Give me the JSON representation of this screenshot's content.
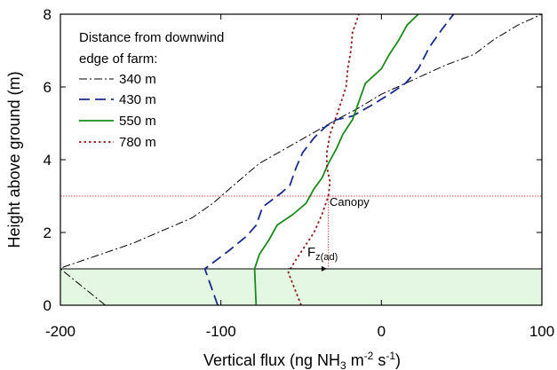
{
  "chart_data": {
    "type": "line",
    "xlabel": "Vertical flux (ng NH",
    "xlabel_sub": "3",
    "xlabel_mid": " m",
    "xlabel_sup1": "-2",
    "xlabel_mid2": " s",
    "xlabel_sup2": "-1",
    "xlabel_end": ")",
    "ylabel": "Height above ground (m)",
    "xlim": [
      -200,
      100
    ],
    "ylim": [
      0,
      8
    ],
    "xticks": [
      -200,
      -100,
      0,
      100
    ],
    "yticks": [
      0,
      2,
      4,
      6,
      8
    ],
    "legend_title_line1": "Distance from downwind",
    "legend_title_line2": "edge of farm:",
    "legend_position": "top-left",
    "grid": false,
    "canopy_height": 3,
    "canopy_label": "Canopy",
    "shaded_layer_top": 1,
    "flux_annotation": {
      "label": "F",
      "sub": "z(ad)",
      "x_from": -58,
      "x_to": -34,
      "y": 1.1
    },
    "series": [
      {
        "name": "340 m",
        "color": "#000000",
        "style": "dashdot",
        "points": [
          [
            -172,
            0
          ],
          [
            -200,
            1
          ],
          [
            -198,
            1.05
          ],
          [
            -155,
            1.7
          ],
          [
            -118,
            2.4
          ],
          [
            -105,
            2.8
          ],
          [
            -92,
            3.3
          ],
          [
            -76,
            3.9
          ],
          [
            -56,
            4.4
          ],
          [
            -40,
            4.8
          ],
          [
            -28,
            5.1
          ],
          [
            -15,
            5.4
          ],
          [
            0,
            5.8
          ],
          [
            20,
            6.2
          ],
          [
            40,
            6.6
          ],
          [
            58,
            6.9
          ],
          [
            70,
            7.3
          ],
          [
            85,
            7.7
          ],
          [
            100,
            8.0
          ]
        ]
      },
      {
        "name": "430 m",
        "color": "#1a2a8c",
        "style": "dash",
        "points": [
          [
            -102,
            0
          ],
          [
            -110,
            1
          ],
          [
            -107,
            1.1
          ],
          [
            -95,
            1.5
          ],
          [
            -84,
            1.9
          ],
          [
            -78,
            2.2
          ],
          [
            -74,
            2.7
          ],
          [
            -68,
            2.9
          ],
          [
            -62,
            3.1
          ],
          [
            -57,
            3.3
          ],
          [
            -53,
            3.8
          ],
          [
            -49,
            4.2
          ],
          [
            -42,
            4.6
          ],
          [
            -35,
            4.9
          ],
          [
            -28,
            5.1
          ],
          [
            -18,
            5.2
          ],
          [
            -6,
            5.5
          ],
          [
            5,
            5.8
          ],
          [
            15,
            6.1
          ],
          [
            23,
            6.5
          ],
          [
            30,
            7.1
          ],
          [
            38,
            7.6
          ],
          [
            45,
            8.0
          ]
        ]
      },
      {
        "name": "550 m",
        "color": "#1a8a1a",
        "style": "solid",
        "points": [
          [
            -78,
            -0.05
          ],
          [
            -79,
            1
          ],
          [
            -76,
            1.4
          ],
          [
            -70,
            1.8
          ],
          [
            -65,
            2.2
          ],
          [
            -55,
            2.5
          ],
          [
            -47,
            2.8
          ],
          [
            -42,
            3.2
          ],
          [
            -37,
            3.5
          ],
          [
            -33,
            3.9
          ],
          [
            -28,
            4.3
          ],
          [
            -24,
            4.7
          ],
          [
            -18,
            5.1
          ],
          [
            -14,
            5.6
          ],
          [
            -10,
            6.1
          ],
          [
            0,
            6.5
          ],
          [
            5,
            6.9
          ],
          [
            11,
            7.3
          ],
          [
            16,
            7.7
          ],
          [
            23,
            8.0
          ]
        ]
      },
      {
        "name": "780 m",
        "color": "#8b1a1a",
        "style": "dot",
        "points": [
          [
            -50,
            0
          ],
          [
            -58,
            0.9
          ],
          [
            -54,
            1.2
          ],
          [
            -48,
            1.6
          ],
          [
            -42,
            2.0
          ],
          [
            -37,
            2.5
          ],
          [
            -33,
            3.0
          ],
          [
            -32,
            3.4
          ],
          [
            -34,
            3.8
          ],
          [
            -34,
            4.2
          ],
          [
            -32,
            4.7
          ],
          [
            -28,
            5.2
          ],
          [
            -25,
            5.6
          ],
          [
            -22,
            6.0
          ],
          [
            -21,
            6.5
          ],
          [
            -19,
            7.0
          ],
          [
            -18,
            7.5
          ],
          [
            -14,
            8.0
          ]
        ]
      }
    ]
  }
}
